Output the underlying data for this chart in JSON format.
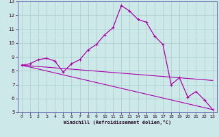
{
  "xlabel": "Windchill (Refroidissement éolien,°C)",
  "xlim": [
    -0.5,
    23.5
  ],
  "ylim": [
    5,
    13
  ],
  "xticks": [
    0,
    1,
    2,
    3,
    4,
    5,
    6,
    7,
    8,
    9,
    10,
    11,
    12,
    13,
    14,
    15,
    16,
    17,
    18,
    19,
    20,
    21,
    22,
    23
  ],
  "yticks": [
    5,
    6,
    7,
    8,
    9,
    10,
    11,
    12,
    13
  ],
  "bg_color": "#cce8e8",
  "line_color": "#aa00aa",
  "grid_color": "#aacccc",
  "series1_x": [
    0,
    1,
    2,
    3,
    4,
    5,
    6,
    7,
    8,
    9,
    10,
    11,
    12,
    13,
    14,
    15,
    16,
    17,
    18,
    19,
    20,
    21,
    22,
    23
  ],
  "series1_y": [
    8.4,
    8.5,
    8.8,
    8.9,
    8.7,
    7.9,
    8.5,
    8.8,
    9.5,
    9.9,
    10.6,
    11.1,
    12.7,
    12.3,
    11.7,
    11.5,
    10.5,
    9.9,
    7.0,
    7.5,
    6.1,
    6.5,
    5.9,
    5.2
  ],
  "series2_x": [
    0,
    23
  ],
  "series2_y": [
    8.4,
    5.2
  ],
  "series3_x": [
    0,
    23
  ],
  "series3_y": [
    8.4,
    7.3
  ]
}
